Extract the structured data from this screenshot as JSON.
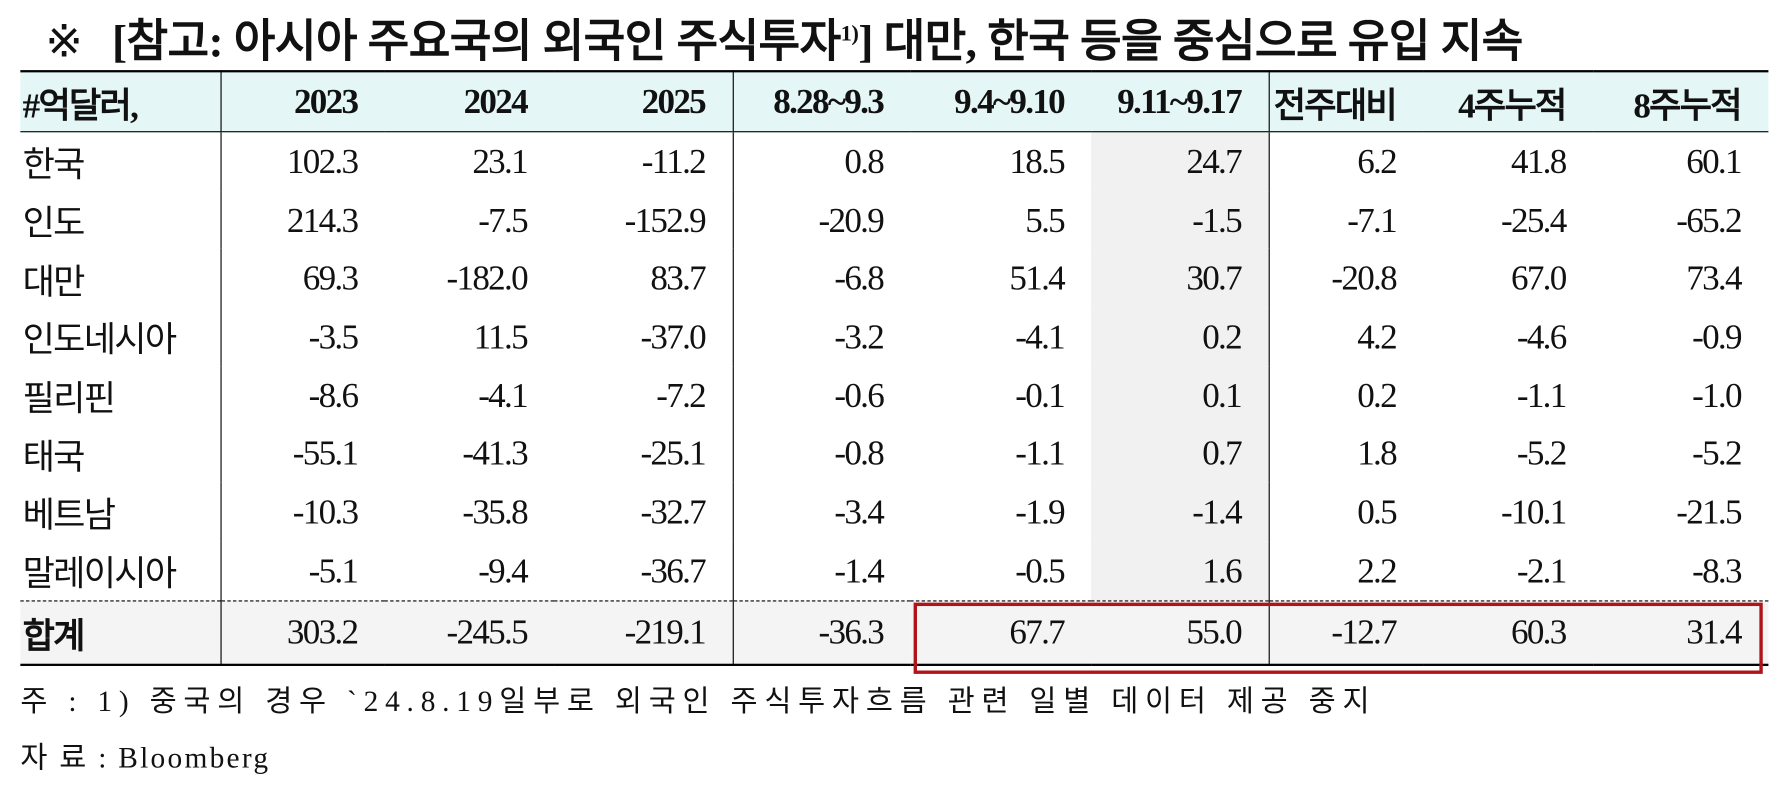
{
  "title": {
    "mark": "※",
    "text_before": "[참고: 아시아 주요국의 외국인 주식투자",
    "sup": "1)",
    "text_after": "] 대만, 한국 등을 중심으로 유입 지속"
  },
  "table": {
    "header": [
      "#억달러,",
      "2023",
      "2024",
      "2025",
      "8.28~9.3",
      "9.4~9.10",
      "9.11~9.17",
      "전주대비",
      "4주누적",
      "8주누적"
    ],
    "rows": [
      [
        "한국",
        "102.3",
        "23.1",
        "-11.2",
        "0.8",
        "18.5",
        "24.7",
        "6.2",
        "41.8",
        "60.1"
      ],
      [
        "인도",
        "214.3",
        "-7.5",
        "-152.9",
        "-20.9",
        "5.5",
        "-1.5",
        "-7.1",
        "-25.4",
        "-65.2"
      ],
      [
        "대만",
        "69.3",
        "-182.0",
        "83.7",
        "-6.8",
        "51.4",
        "30.7",
        "-20.8",
        "67.0",
        "73.4"
      ],
      [
        "인도네시아",
        "-3.5",
        "11.5",
        "-37.0",
        "-3.2",
        "-4.1",
        "0.2",
        "4.2",
        "-4.6",
        "-0.9"
      ],
      [
        "필리핀",
        "-8.6",
        "-4.1",
        "-7.2",
        "-0.6",
        "-0.1",
        "0.1",
        "0.2",
        "-1.1",
        "-1.0"
      ],
      [
        "태국",
        "-55.1",
        "-41.3",
        "-25.1",
        "-0.8",
        "-1.1",
        "0.7",
        "1.8",
        "-5.2",
        "-5.2"
      ],
      [
        "베트남",
        "-10.3",
        "-35.8",
        "-32.7",
        "-3.4",
        "-1.9",
        "-1.4",
        "0.5",
        "-10.1",
        "-21.5"
      ],
      [
        "말레이시아",
        "-5.1",
        "-9.4",
        "-36.7",
        "-1.4",
        "-0.5",
        "1.6",
        "2.2",
        "-2.1",
        "-8.3"
      ]
    ],
    "total": [
      "합계",
      "303.2",
      "-245.5",
      "-219.1",
      "-36.3",
      "67.7",
      "55.0",
      "-12.7",
      "60.3",
      "31.4"
    ]
  },
  "notes": [
    "주 : 1) 중국의 경우 `24.8.19일부로 외국인 주식투자흐름 관련 일별 데이터 제공 중지",
    "자 료 : Bloomberg"
  ]
}
